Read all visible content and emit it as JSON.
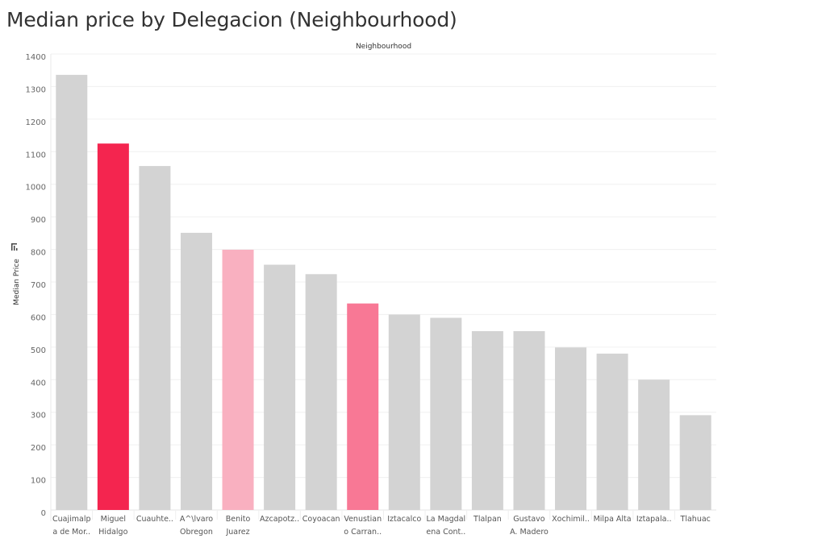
{
  "chart_data": {
    "type": "bar",
    "title": "Median price by Delegacion (Neighbourhood)",
    "header": "Neighbourhood",
    "xlabel": "Neighbourhood",
    "ylabel": "Median Price",
    "ylim": [
      0,
      1400
    ],
    "yticks": [
      0,
      100,
      200,
      300,
      400,
      500,
      600,
      700,
      800,
      900,
      1000,
      1100,
      1200,
      1300,
      1400
    ],
    "grid": true,
    "categories": [
      [
        "Cuajimalp",
        "a de Mor.."
      ],
      [
        "Miguel",
        "Hidalgo"
      ],
      [
        "Cuauhte.."
      ],
      [
        "A^\\lvaro",
        "Obregon"
      ],
      [
        "Benito",
        "Juarez"
      ],
      [
        "Azcapotz.."
      ],
      [
        "Coyoacan"
      ],
      [
        "Venustian",
        "o Carran.."
      ],
      [
        "Iztacalco"
      ],
      [
        "La Magdal",
        "ena Cont.."
      ],
      [
        "Tlalpan"
      ],
      [
        "Gustavo",
        "A. Madero"
      ],
      [
        "Xochimil.."
      ],
      [
        "Milpa Alta"
      ],
      [
        "Iztapala.."
      ],
      [
        "Tlahuac"
      ]
    ],
    "values": [
      1336,
      1125,
      1056,
      851,
      799,
      753,
      724,
      634,
      600,
      590,
      549,
      549,
      499,
      480,
      400,
      291
    ],
    "colors": [
      "#d3d3d3",
      "#f4254f",
      "#d3d3d3",
      "#d3d3d3",
      "#f9b0c0",
      "#d3d3d3",
      "#d3d3d3",
      "#f87895",
      "#d3d3d3",
      "#d3d3d3",
      "#d3d3d3",
      "#d3d3d3",
      "#d3d3d3",
      "#d3d3d3",
      "#d3d3d3",
      "#d3d3d3"
    ],
    "sort_icon": "sort-descending-icon"
  }
}
